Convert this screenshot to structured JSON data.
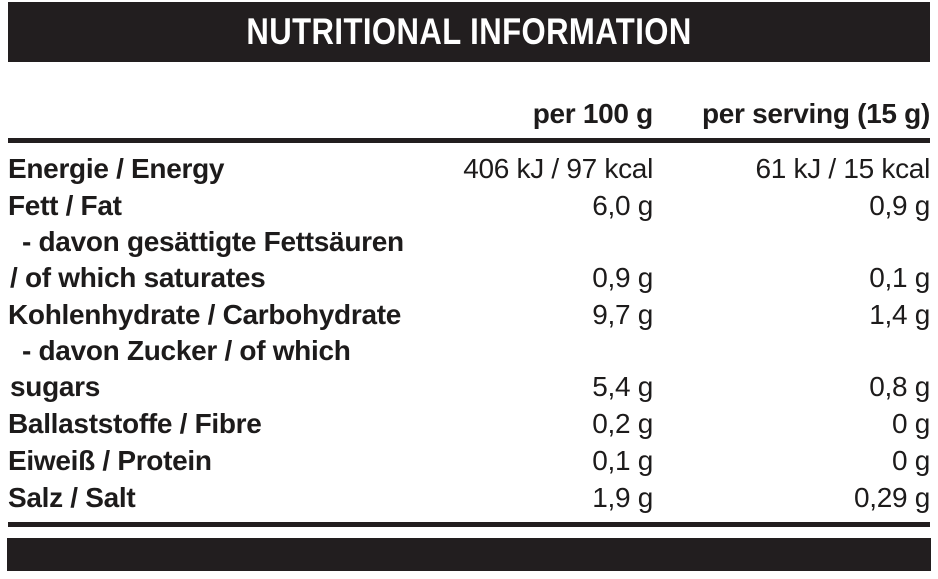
{
  "title": "NUTRITIONAL INFORMATION",
  "columns": {
    "per_100g": "per 100 g",
    "per_serving": "per serving (15 g)"
  },
  "rows": [
    {
      "label": "Energie / Energy",
      "per100": "406 kJ / 97 kcal",
      "serving": "61 kJ / 15 kcal"
    },
    {
      "label": "Fett / Fat",
      "per100": "6,0 g",
      "serving": "0,9 g"
    },
    {
      "label_line1": "- davon gesättigte Fettsäuren",
      "label_line2": "/ of which saturates",
      "per100": "0,9 g",
      "serving": "0,1 g"
    },
    {
      "label": "Kohlenhydrate / Carbohydrate",
      "per100": "9,7 g",
      "serving": "1,4 g"
    },
    {
      "label_line1": "- davon Zucker / of which",
      "label_line2": "sugars",
      "per100": "5,4 g",
      "serving": "0,8 g"
    },
    {
      "label": "Ballaststoffe / Fibre",
      "per100": "0,2 g",
      "serving": "0 g"
    },
    {
      "label": "Eiweiß / Protein",
      "per100": "0,1 g",
      "serving": "0 g"
    },
    {
      "label": "Salz / Salt",
      "per100": "1,9 g",
      "serving": "0,29 g"
    }
  ],
  "colors": {
    "bar": "#221e1f",
    "text": "#1d1b1b",
    "title_text": "#ffffff",
    "background": "#ffffff"
  }
}
